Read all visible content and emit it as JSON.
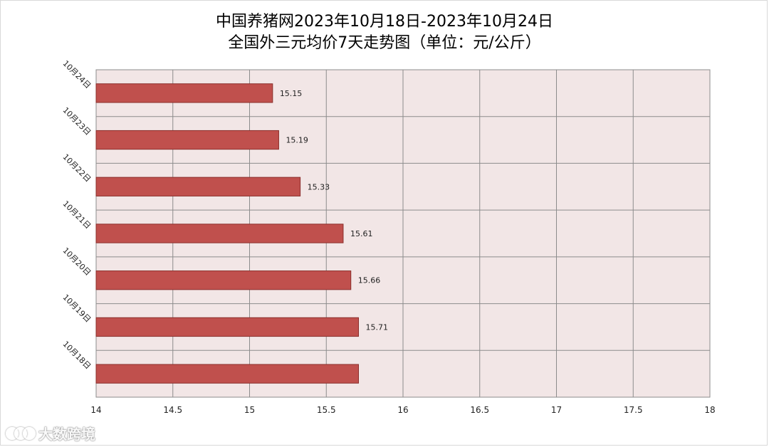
{
  "chart_data": {
    "type": "bar",
    "orientation": "horizontal",
    "title_line1": "中国养猪网2023年10月18日-2023年10月24日",
    "title_line2": "全国外三元均价7天走势图（单位：元/公斤）",
    "categories": [
      "10月24日",
      "10月23日",
      "10月22日",
      "10月21日",
      "10月20日",
      "10月19日",
      "10月18日"
    ],
    "values": [
      15.15,
      15.19,
      15.33,
      15.61,
      15.66,
      15.71,
      15.71
    ],
    "data_labels": [
      "15.15",
      "15.19",
      "15.33",
      "15.61",
      "15.66",
      "15.71",
      ""
    ],
    "xlim": [
      14,
      18
    ],
    "xticks": [
      14,
      14.5,
      15,
      15.5,
      16,
      16.5,
      17,
      17.5,
      18
    ],
    "xtick_labels": [
      "14",
      "14.5",
      "15",
      "15.5",
      "16",
      "16.5",
      "17",
      "17.5",
      "18"
    ],
    "grid": true,
    "colors": {
      "bar": "#c0504d",
      "bar_border": "#8b2f2c",
      "plot_bg": "#f2e6e6",
      "grid": "#8c8c8c"
    }
  },
  "watermark": {
    "text": "大数跨境"
  }
}
